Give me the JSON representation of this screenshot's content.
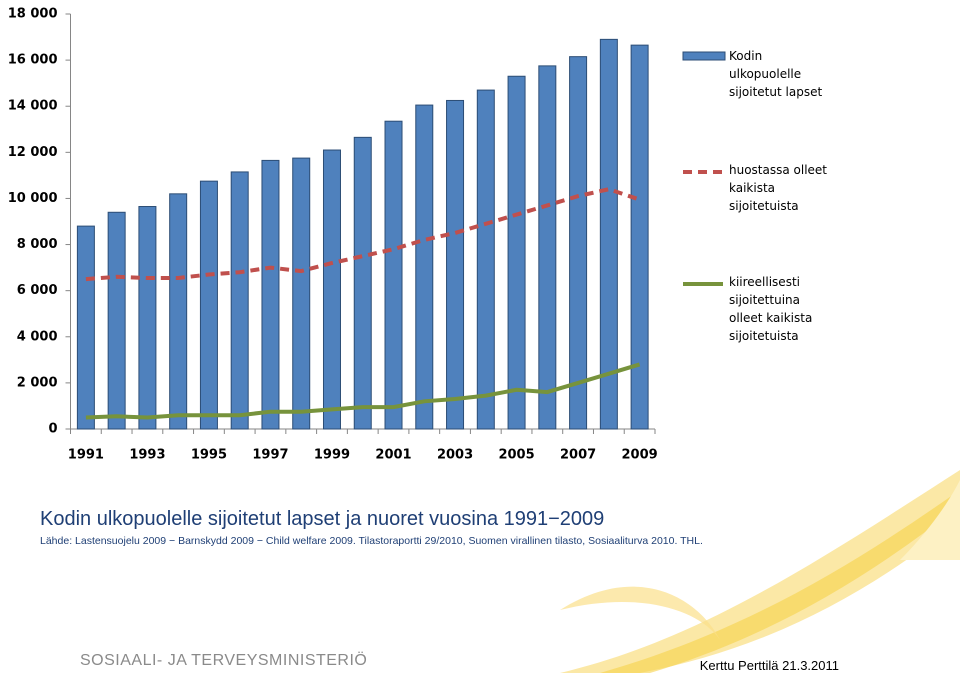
{
  "chart_data": {
    "type": "bar-line",
    "categories": [
      "1991",
      null,
      "1993",
      null,
      "1995",
      null,
      "1997",
      null,
      "1999",
      null,
      "2001",
      null,
      "2003",
      null,
      "2005",
      null,
      "2007",
      null,
      "2009"
    ],
    "series": [
      {
        "name": "Kodin\nulkopuolelle\nsijoitetut lapset",
        "type": "bar",
        "color": "#4f81bd",
        "values": [
          8800,
          9400,
          9650,
          10200,
          10750,
          11150,
          11650,
          11750,
          12100,
          12650,
          13350,
          14050,
          14250,
          14700,
          15300,
          15750,
          16150,
          16900,
          16650
        ]
      },
      {
        "name": "huostassa olleet\nkaikista\nsijoitetuista",
        "type": "line",
        "dashed": true,
        "color": "#c0504d",
        "values": [
          6500,
          6600,
          6550,
          6550,
          6700,
          6800,
          7000,
          6850,
          7200,
          7500,
          7800,
          8200,
          8500,
          8900,
          9300,
          9700,
          10100,
          10400,
          9950
        ]
      },
      {
        "name": "kiireellisesti\nsijoitettuina\nolleet kaikista\nsijoitetuista",
        "type": "line",
        "dashed": false,
        "color": "#77933c",
        "values": [
          500,
          550,
          500,
          600,
          600,
          600,
          750,
          750,
          850,
          950,
          950,
          1200,
          1300,
          1450,
          1700,
          1600,
          2000,
          2400,
          2800
        ]
      }
    ],
    "ylim": [
      0,
      18000
    ],
    "yticks": [
      0,
      {
        "value": 2000,
        "label": "2 000"
      },
      {
        "value": 4000,
        "label": "4 000"
      },
      {
        "value": 6000,
        "label": "6 000"
      },
      {
        "value": 8000,
        "label": "8 000"
      },
      {
        "value": 10000,
        "label": "10 000"
      },
      {
        "value": 12000,
        "label": "12 000"
      },
      {
        "value": 14000,
        "label": "14 000"
      },
      {
        "value": 16000,
        "label": "16 000"
      },
      {
        "value": 18000,
        "label": "18 000"
      }
    ],
    "grid": false,
    "legend": "right"
  },
  "slide": {
    "title": "Kodin ulkopuolelle sijoitetut lapset ja nuoret vuosina 1991−2009",
    "source": "Lähde: Lastensuojelu 2009 − Barnskydd 2009 − Child welfare 2009. Tilastoraportti 29/2010, Suomen virallinen tilasto, Sosiaaliturva 2010. THL.",
    "organization": "SOSIAALI- JA TERVEYSMINISTERIÖ",
    "author": "Kerttu Perttilä 21.3.2011"
  }
}
